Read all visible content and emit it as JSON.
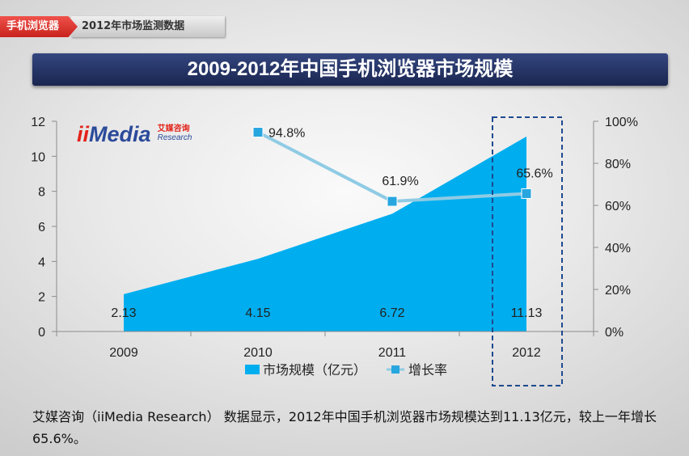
{
  "header": {
    "tag": "手机浏览器",
    "subtitle": "2012年市场监测数据"
  },
  "logo": {
    "mark_red": "ii",
    "mark_blue": "Media",
    "cn": "艾媒咨询",
    "en": "Research"
  },
  "chart_data": {
    "type": "area",
    "title": "2009-2012年中国手机浏览器市场规模",
    "categories": [
      "2009",
      "2010",
      "2011",
      "2012"
    ],
    "series": [
      {
        "name": "市场规模（亿元）",
        "type": "area",
        "axis": "left",
        "values": [
          2.13,
          4.15,
          6.72,
          11.13
        ],
        "labels": [
          "2.13",
          "4.15",
          "6.72",
          "11.13"
        ],
        "color": "#00AEEF"
      },
      {
        "name": "增长率",
        "type": "line",
        "axis": "right",
        "values": [
          null,
          94.8,
          61.9,
          65.6
        ],
        "labels": [
          "",
          "94.8%",
          "61.9%",
          "65.6%"
        ],
        "color": "#8FCBE4",
        "marker_color": "#27A6DF"
      }
    ],
    "y_left": {
      "range": [
        0,
        12
      ],
      "ticks": [
        0,
        2,
        4,
        6,
        8,
        10,
        12
      ],
      "tick_labels": [
        "0",
        "2",
        "4",
        "6",
        "8",
        "10",
        "12"
      ]
    },
    "y_right": {
      "range": [
        0,
        100
      ],
      "ticks": [
        0,
        20,
        40,
        60,
        80,
        100
      ],
      "tick_labels": [
        "0%",
        "20%",
        "40%",
        "60%",
        "80%",
        "100%"
      ]
    },
    "grid": false,
    "legend": "bottom",
    "highlight_category": "2012",
    "highlight_color": "#1E4A8F"
  },
  "note": {
    "text": "艾媒咨询（iiMedia Research） 数据显示，2012年中国手机浏览器市场规模达到11.13亿元，较上一年增长65.6%。"
  },
  "colors": {
    "tag_red": "#E23B36",
    "title_bar": "#1F2C5C",
    "axis": "#8C8C8C"
  }
}
